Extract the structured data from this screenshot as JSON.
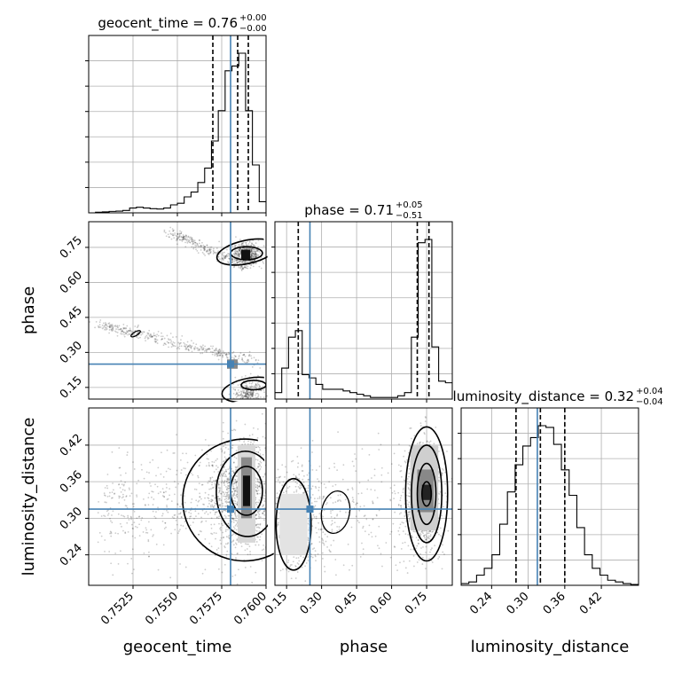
{
  "chart_data": {
    "type": "corner",
    "parameters": [
      "geocent_time",
      "phase",
      "luminosity_distance"
    ],
    "axis_labels": {
      "geocent_time": "geocent_time",
      "phase": "phase",
      "luminosity_distance": "luminosity_distance"
    },
    "ranges": {
      "geocent_time": [
        0.75,
        0.76
      ],
      "phase": [
        0.1,
        0.86
      ],
      "luminosity_distance": [
        0.19,
        0.481
      ]
    },
    "ticks": {
      "geocent_time": [
        0.7525,
        0.755,
        0.7575,
        0.76
      ],
      "phase": [
        0.15,
        0.3,
        0.45,
        0.6,
        0.75
      ],
      "luminosity_distance": [
        0.24,
        0.3,
        0.36,
        0.42
      ]
    },
    "tick_labels": {
      "geocent_time": [
        "0.7525",
        "0.7550",
        "0.7575",
        "0.7600"
      ],
      "phase": [
        "0.15",
        "0.30",
        "0.45",
        "0.60",
        "0.75"
      ],
      "luminosity_distance": [
        "0.24",
        "0.30",
        "0.36",
        "0.42"
      ]
    },
    "truths": {
      "geocent_time": 0.758,
      "phase": 0.25,
      "luminosity_distance": 0.315
    },
    "quantiles": {
      "geocent_time": [
        0.757,
        0.7584,
        0.759
      ],
      "phase": [
        0.2,
        0.71,
        0.76
      ],
      "luminosity_distance": [
        0.28,
        0.32,
        0.36
      ]
    },
    "titles": {
      "geocent_time": {
        "name": "geocent_time",
        "value": "0.76",
        "plus": "+0.00",
        "minus": "−0.00"
      },
      "phase": {
        "name": "phase",
        "value": "0.71",
        "plus": "+0.05",
        "minus": "−0.51"
      },
      "luminosity_distance": {
        "name": "luminosity_distance",
        "value": "0.32",
        "plus": "+0.04",
        "minus": "−0.04"
      }
    },
    "histograms": {
      "geocent_time": {
        "range": [
          0.75,
          0.76
        ],
        "counts": [
          0,
          0.004,
          0.006,
          0.009,
          0.011,
          0.015,
          0.03,
          0.035,
          0.03,
          0.026,
          0.024,
          0.03,
          0.05,
          0.06,
          0.1,
          0.13,
          0.19,
          0.28,
          0.45,
          0.64,
          0.89,
          0.92,
          1.0,
          0.64,
          0.3,
          0.07
        ]
      },
      "phase": {
        "range": [
          0.1,
          0.86
        ],
        "counts": [
          0.04,
          0.19,
          0.38,
          0.42,
          0.15,
          0.13,
          0.09,
          0.06,
          0.06,
          0.06,
          0.05,
          0.04,
          0.03,
          0.02,
          0.01,
          0.01,
          0.01,
          0.01,
          0.02,
          0.04,
          0.38,
          0.96,
          0.98,
          0.32,
          0.11,
          0.1
        ]
      },
      "luminosity_distance": {
        "range": [
          0.19,
          0.481
        ],
        "counts": [
          0.01,
          0.02,
          0.06,
          0.1,
          0.18,
          0.36,
          0.55,
          0.71,
          0.82,
          0.87,
          0.94,
          0.93,
          0.83,
          0.68,
          0.53,
          0.34,
          0.18,
          0.1,
          0.06,
          0.03,
          0.02,
          0.01,
          0.005
        ]
      }
    },
    "contour_peaks": {
      "phase_vs_geocent_time": [
        {
          "x": 0.7588,
          "y": 0.72
        },
        {
          "x": 0.7527,
          "y": 0.38
        }
      ],
      "luminosity_distance_vs_geocent_time": [
        {
          "x": 0.7588,
          "y": 0.345
        }
      ],
      "luminosity_distance_vs_phase": [
        {
          "x": 0.75,
          "y": 0.34
        }
      ]
    },
    "grid": true
  }
}
